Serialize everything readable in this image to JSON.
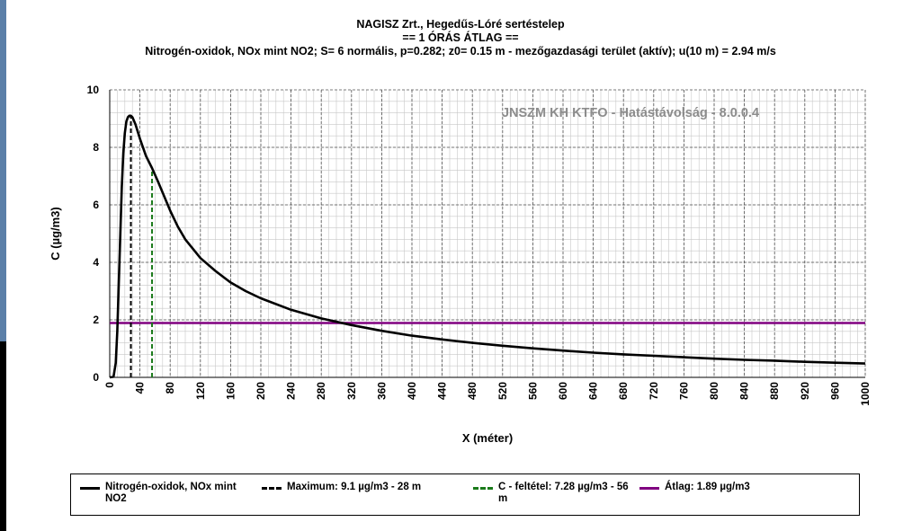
{
  "chart_data": {
    "type": "line",
    "title": "NAGISZ Zrt., Hegedűs-Lóré sertéstelep",
    "subtitle": "== 1 ÓRÁS ÁTLAG ==",
    "description": "Nitrogén-oxidok, NOx mint NO2; S= 6 normális, p=0.282; z0= 0.15 m - mezőgazdasági terület (aktív); u(10 m) = 2.94 m/s",
    "watermark": "JNSZM KH KTFO - Hatástávolság  - 8.0.0.4",
    "xlabel": "X (méter)",
    "ylabel": "C (µg/m3)",
    "xlim": [
      0,
      1000
    ],
    "ylim": [
      0,
      10
    ],
    "x_ticks": [
      0,
      40,
      80,
      120,
      160,
      200,
      240,
      280,
      320,
      360,
      400,
      440,
      480,
      520,
      560,
      600,
      640,
      680,
      720,
      760,
      800,
      840,
      880,
      920,
      960,
      1000
    ],
    "y_ticks": [
      0,
      2,
      4,
      6,
      8,
      10
    ],
    "grid": true,
    "legend_position": "bottom",
    "series": [
      {
        "name": "Nitrogén-oxidok, NOx mint NO2",
        "style": "solid",
        "color": "#000000",
        "x": [
          0,
          5,
          8,
          10,
          12,
          14,
          16,
          18,
          20,
          22,
          24,
          26,
          28,
          30,
          34,
          40,
          48,
          56,
          64,
          72,
          80,
          90,
          100,
          120,
          140,
          160,
          180,
          200,
          240,
          280,
          320,
          360,
          400,
          440,
          480,
          520,
          560,
          600,
          640,
          680,
          720,
          760,
          800,
          840,
          880,
          920,
          960,
          1000
        ],
        "values": [
          0,
          0.02,
          0.5,
          1.6,
          3.3,
          5.0,
          6.6,
          7.8,
          8.5,
          8.9,
          9.05,
          9.1,
          9.1,
          9.05,
          8.8,
          8.3,
          7.7,
          7.28,
          6.8,
          6.3,
          5.8,
          5.25,
          4.8,
          4.15,
          3.7,
          3.3,
          3.0,
          2.75,
          2.35,
          2.05,
          1.82,
          1.62,
          1.45,
          1.32,
          1.2,
          1.1,
          1.01,
          0.93,
          0.86,
          0.8,
          0.75,
          0.7,
          0.65,
          0.61,
          0.58,
          0.54,
          0.51,
          0.48
        ]
      }
    ],
    "markers": [
      {
        "name": "Maximum: 9.1 µg/m3 - 28 m",
        "x": 28,
        "y": 9.1,
        "style": "dashed",
        "color": "#000000"
      },
      {
        "name": "C - feltétel: 7.28 µg/m3 - 56 m",
        "x": 56,
        "y": 7.28,
        "style": "dashed",
        "color": "#1a7a1a"
      },
      {
        "name": "Átlag: 1.89 µg/m3",
        "y": 1.89,
        "style": "horizontal",
        "color": "#800080"
      }
    ]
  },
  "legend": {
    "items": [
      {
        "label": "Nitrogén-oxidok, NOx mint NO2",
        "color": "#000000",
        "dash": "solid"
      },
      {
        "label": "Maximum: 9.1 µg/m3 - 28 m",
        "color": "#000000",
        "dash": "dashed"
      },
      {
        "label": "C - feltétel: 7.28 µg/m3 - 56 m",
        "color": "#1a7a1a",
        "dash": "dashed"
      },
      {
        "label": "Átlag: 1.89 µg/m3",
        "color": "#800080",
        "dash": "solid"
      }
    ]
  }
}
